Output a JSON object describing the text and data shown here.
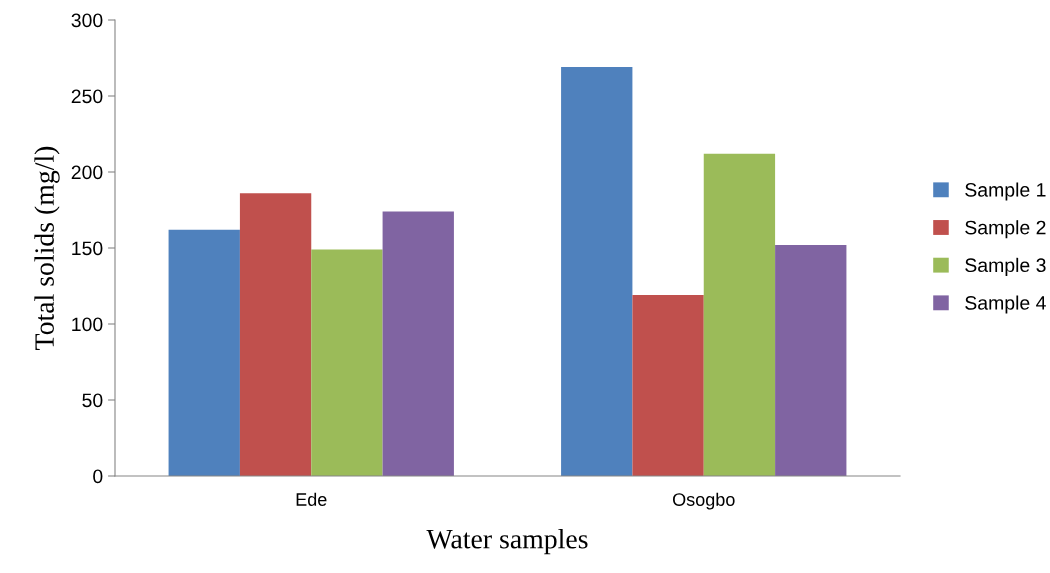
{
  "chart_data": {
    "type": "bar",
    "xlabel": "Water samples",
    "ylabel": "Total solids (mg/l)",
    "categories": [
      "Ede",
      "Osogbo"
    ],
    "series": [
      {
        "name": "Sample 1",
        "color": "#4f81bd",
        "values": [
          162,
          269
        ]
      },
      {
        "name": "Sample 2",
        "color": "#c0504d",
        "values": [
          186,
          119
        ]
      },
      {
        "name": "Sample 3",
        "color": "#9bbb59",
        "values": [
          149,
          212
        ]
      },
      {
        "name": "Sample 4",
        "color": "#8064a2",
        "values": [
          174,
          152
        ]
      }
    ],
    "ylim": [
      0,
      300
    ],
    "yticks": [
      0,
      50,
      100,
      150,
      200,
      250,
      300
    ],
    "grid": false,
    "legend": "right"
  }
}
